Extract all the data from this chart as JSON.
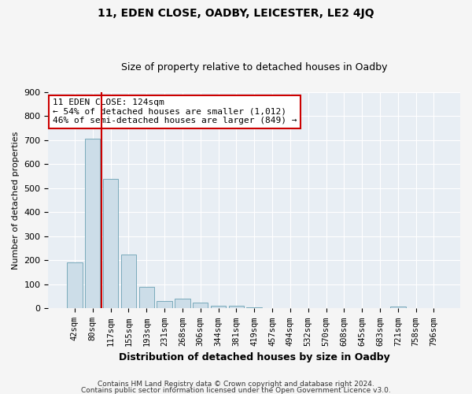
{
  "title_line1": "11, EDEN CLOSE, OADBY, LEICESTER, LE2 4JQ",
  "title_line2": "Size of property relative to detached houses in Oadby",
  "xlabel": "Distribution of detached houses by size in Oadby",
  "ylabel": "Number of detached properties",
  "bar_labels": [
    "42sqm",
    "80sqm",
    "117sqm",
    "155sqm",
    "193sqm",
    "231sqm",
    "268sqm",
    "306sqm",
    "344sqm",
    "381sqm",
    "419sqm",
    "457sqm",
    "494sqm",
    "532sqm",
    "570sqm",
    "608sqm",
    "645sqm",
    "683sqm",
    "721sqm",
    "758sqm",
    "796sqm"
  ],
  "bar_values": [
    190,
    705,
    540,
    225,
    90,
    32,
    40,
    25,
    12,
    10,
    6,
    3,
    2,
    1,
    0,
    0,
    0,
    0,
    8,
    0,
    0
  ],
  "bar_color": "#ccdde8",
  "bar_edge_color": "#7aaabb",
  "vline_color": "#cc0000",
  "annotation_title": "11 EDEN CLOSE: 124sqm",
  "annotation_line1": "← 54% of detached houses are smaller (1,012)",
  "annotation_line2": "46% of semi-detached houses are larger (849) →",
  "annotation_box_color": "white",
  "annotation_box_edge": "#cc0000",
  "ylim": [
    0,
    900
  ],
  "yticks": [
    0,
    100,
    200,
    300,
    400,
    500,
    600,
    700,
    800,
    900
  ],
  "footnote1": "Contains HM Land Registry data © Crown copyright and database right 2024.",
  "footnote2": "Contains public sector information licensed under the Open Government Licence v3.0.",
  "bg_color": "#f5f5f5",
  "plot_bg_color": "#e8eef4",
  "grid_color": "#ffffff"
}
